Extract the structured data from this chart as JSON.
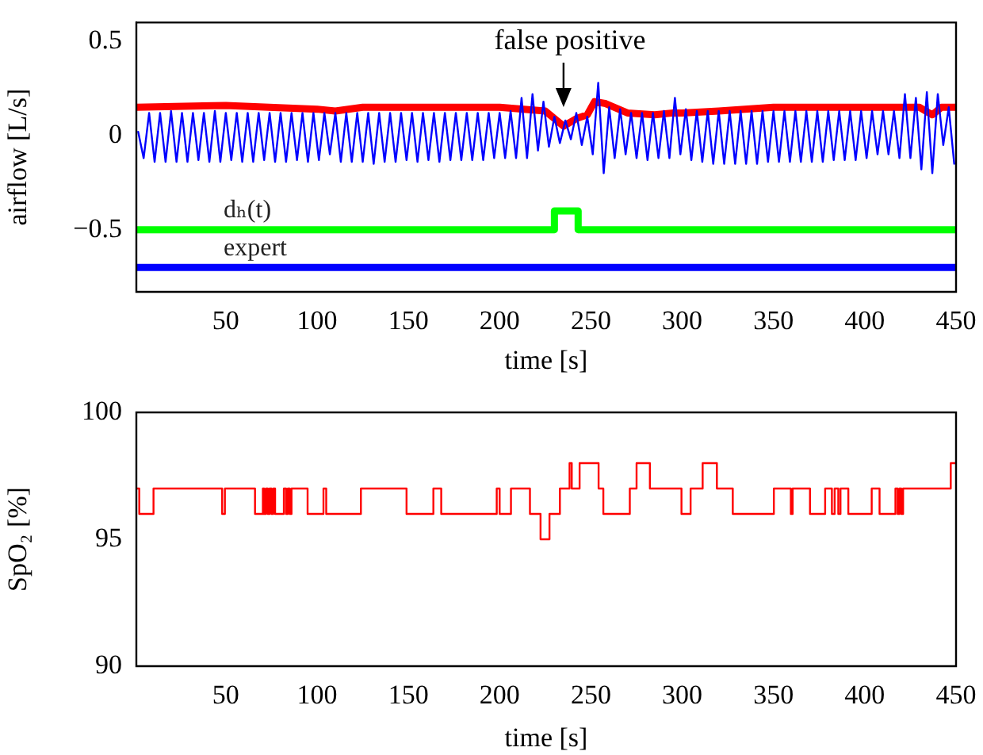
{
  "chart_data": [
    {
      "type": "line",
      "xlabel": "time [s]",
      "ylabel": "airflow [L/s]",
      "xlim": [
        1,
        450
      ],
      "ylim": [
        -0.83,
        0.6
      ],
      "xticks": [
        50,
        100,
        150,
        200,
        250,
        300,
        350,
        400,
        450
      ],
      "yticks": [
        {
          "value": -0.5,
          "label": "−0.5"
        },
        0,
        0.5
      ],
      "annotations": [
        {
          "text": "false positive",
          "x": 235,
          "y": 0.05
        }
      ],
      "series": [
        {
          "color": "#0000ff",
          "x": [
            2,
            5,
            8,
            11,
            14,
            17,
            20,
            23,
            26,
            29,
            32,
            35,
            38,
            41,
            44,
            47,
            50,
            53,
            56,
            59,
            62,
            65,
            68,
            71,
            74,
            77,
            80,
            83,
            86,
            89,
            92,
            95,
            98,
            101,
            104,
            107,
            110,
            113,
            116,
            119,
            122,
            125,
            128,
            131,
            134,
            137,
            140,
            143,
            146,
            149,
            152,
            155,
            158,
            161,
            164,
            167,
            170,
            173,
            176,
            179,
            182,
            185,
            188,
            191,
            194,
            197,
            200,
            203,
            206,
            209,
            212,
            215,
            218,
            221,
            224,
            227,
            230,
            233,
            236,
            239,
            242,
            245,
            248,
            251,
            254,
            257,
            260,
            263,
            266,
            269,
            272,
            275,
            278,
            281,
            284,
            287,
            290,
            293,
            296,
            299,
            302,
            305,
            308,
            311,
            314,
            317,
            320,
            323,
            326,
            329,
            332,
            335,
            338,
            341,
            344,
            347,
            350,
            353,
            356,
            359,
            362,
            365,
            368,
            371,
            374,
            377,
            380,
            383,
            386,
            389,
            392,
            395,
            398,
            401,
            404,
            407,
            410,
            413,
            416,
            419,
            422,
            425,
            428,
            431,
            434,
            437,
            440,
            443,
            446,
            449
          ],
          "values": [
            0.02,
            -0.12,
            0.12,
            -0.14,
            0.12,
            -0.14,
            0.13,
            -0.14,
            0.12,
            -0.14,
            0.12,
            -0.13,
            0.12,
            -0.14,
            0.13,
            -0.14,
            0.12,
            -0.13,
            0.12,
            -0.14,
            0.12,
            -0.14,
            0.12,
            -0.13,
            0.12,
            -0.14,
            0.12,
            -0.14,
            0.12,
            -0.13,
            0.12,
            -0.14,
            0.12,
            -0.13,
            0.12,
            -0.1,
            0.12,
            -0.14,
            0.12,
            -0.14,
            0.12,
            -0.14,
            0.12,
            -0.15,
            0.12,
            -0.14,
            0.12,
            -0.14,
            0.12,
            -0.13,
            0.12,
            -0.14,
            0.12,
            -0.13,
            0.12,
            -0.14,
            0.12,
            -0.13,
            0.12,
            -0.13,
            0.12,
            -0.13,
            0.12,
            -0.13,
            0.12,
            -0.12,
            0.12,
            -0.12,
            0.13,
            -0.12,
            0.2,
            -0.12,
            0.22,
            -0.08,
            0.18,
            -0.06,
            0.1,
            -0.04,
            0.08,
            -0.02,
            0.12,
            -0.05,
            0.1,
            -0.1,
            0.28,
            -0.2,
            0.15,
            -0.12,
            0.14,
            -0.1,
            0.12,
            -0.12,
            0.12,
            -0.13,
            0.12,
            -0.12,
            0.13,
            -0.12,
            0.2,
            -0.1,
            0.14,
            -0.13,
            0.13,
            -0.14,
            0.13,
            -0.15,
            0.13,
            -0.15,
            0.13,
            -0.15,
            0.13,
            -0.15,
            0.13,
            -0.15,
            0.13,
            -0.14,
            0.13,
            -0.14,
            0.13,
            -0.14,
            0.13,
            -0.14,
            0.13,
            -0.14,
            0.13,
            -0.14,
            0.13,
            -0.13,
            0.13,
            -0.13,
            0.13,
            -0.13,
            0.13,
            -0.12,
            0.13,
            -0.1,
            0.13,
            -0.1,
            0.13,
            -0.12,
            0.22,
            -0.12,
            0.2,
            -0.18,
            0.23,
            -0.2,
            0.22,
            -0.05,
            0.15,
            -0.15
          ]
        },
        {
          "color": "#ff0000",
          "x": [
            1,
            50,
            100,
            110,
            125,
            150,
            200,
            225,
            235,
            242,
            248,
            252,
            258,
            270,
            285,
            295,
            300,
            320,
            350,
            400,
            430,
            437,
            442,
            450
          ],
          "values": [
            0.15,
            0.16,
            0.14,
            0.13,
            0.15,
            0.15,
            0.15,
            0.13,
            0.05,
            0.09,
            0.11,
            0.18,
            0.17,
            0.12,
            0.11,
            0.12,
            0.12,
            0.13,
            0.15,
            0.15,
            0.15,
            0.11,
            0.15,
            0.15
          ]
        },
        {
          "name": "dₕ(t)",
          "type": "step",
          "color": "#00ff00",
          "x": [
            1,
            230,
            243,
            450
          ],
          "values": [
            -0.5,
            -0.4,
            -0.5,
            -0.5
          ]
        },
        {
          "name": "expert",
          "color": "#0000ff",
          "x": [
            1,
            450
          ],
          "values": [
            -0.7,
            -0.7
          ]
        }
      ]
    },
    {
      "type": "step",
      "xlabel": "time [s]",
      "ylabel": "SpO₂ [%]",
      "xlim": [
        1,
        450
      ],
      "ylim": [
        90,
        100
      ],
      "xticks": [
        50,
        100,
        150,
        200,
        250,
        300,
        350,
        400,
        450
      ],
      "yticks": [
        90,
        95,
        100
      ],
      "series": [
        {
          "color": "#ff0000",
          "x": [
            1,
            2.6,
            10.4,
            48,
            49.5,
            66,
            70.3,
            71,
            72,
            73,
            74,
            75,
            76,
            77,
            81.8,
            83,
            84,
            85,
            86,
            94.8,
            103.5,
            105,
            124,
            149,
            163.7,
            168,
            198.4,
            200,
            206.2,
            216.6,
            222.4,
            227.3,
            233,
            238.3,
            239.5,
            243.8,
            254.2,
            256.8,
            271.3,
            275,
            282.3,
            299.6,
            304.6,
            311.2,
            319,
            327.7,
            350.2,
            359.5,
            360.5,
            370,
            378.3,
            382,
            383.5,
            385.5,
            386.7,
            391,
            403.8,
            408.1,
            416.8,
            418,
            419,
            420,
            421,
            445.1,
            447.1,
            450
          ],
          "values": [
            97,
            96,
            97,
            96,
            97,
            96,
            97,
            96,
            97,
            96,
            97,
            96,
            97,
            96,
            97,
            96,
            97,
            96,
            97,
            96,
            97,
            96,
            97,
            96,
            97,
            96,
            97,
            96,
            97,
            96,
            95,
            96,
            97,
            98,
            97,
            98,
            97,
            96,
            97,
            98,
            97,
            96,
            97,
            98,
            97,
            96,
            97,
            96,
            97,
            96,
            97,
            96,
            97,
            96,
            97,
            96,
            97,
            96,
            97,
            96,
            97,
            96,
            97,
            97,
            98,
            98
          ]
        }
      ]
    }
  ]
}
